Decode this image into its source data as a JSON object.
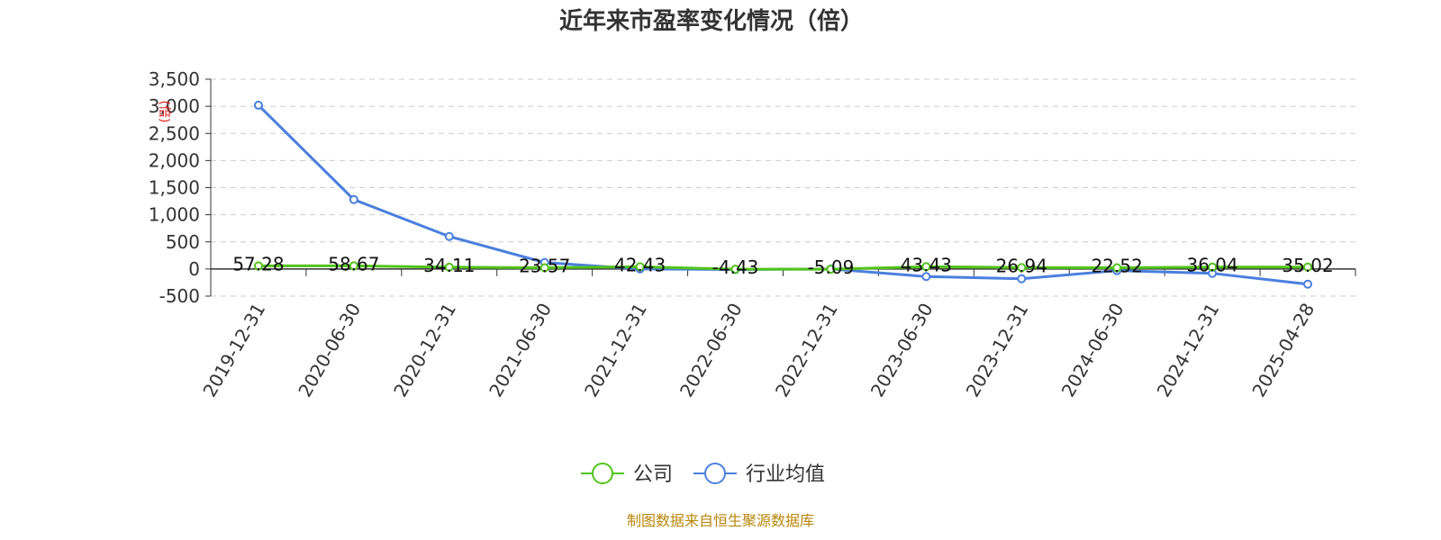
{
  "chart_data": {
    "type": "line",
    "title": "近年来市盈率变化情况（倍）",
    "ylabel": "(倍)",
    "categories": [
      "2019-12-31",
      "2020-06-30",
      "2020-12-31",
      "2021-06-30",
      "2021-12-31",
      "2022-06-30",
      "2022-12-31",
      "2023-06-30",
      "2023-12-31",
      "2024-06-30",
      "2024-12-31",
      "2025-04-28"
    ],
    "ylim": [
      -500,
      3500
    ],
    "yticks": [
      -500,
      0,
      500,
      1000,
      1500,
      2000,
      2500,
      3000,
      3500
    ],
    "ytick_labels": [
      "-500",
      "0",
      "500",
      "1,000",
      "1,500",
      "2,000",
      "2,500",
      "3,000",
      "3,500"
    ],
    "grid": true,
    "legend_position": "bottom",
    "series": [
      {
        "name": "公司",
        "color": "#52c41a",
        "values": [
          57.28,
          58.67,
          34.11,
          23.57,
          42.43,
          -4.43,
          -5.09,
          43.43,
          26.94,
          22.52,
          36.04,
          35.02
        ],
        "labels": [
          "57.28",
          "58.67",
          "34.11",
          "23.57",
          "42.43",
          "-4.43",
          "-5.09",
          "43.43",
          "26.94",
          "22.52",
          "36.04",
          "35.02"
        ]
      },
      {
        "name": "行业均值",
        "color": "#4a7fde",
        "values": [
          3020,
          1280,
          600,
          120,
          0,
          -10,
          0,
          -140,
          -180,
          -30,
          -80,
          -280
        ]
      }
    ],
    "source": "制图数据来自恒生聚源数据库"
  }
}
